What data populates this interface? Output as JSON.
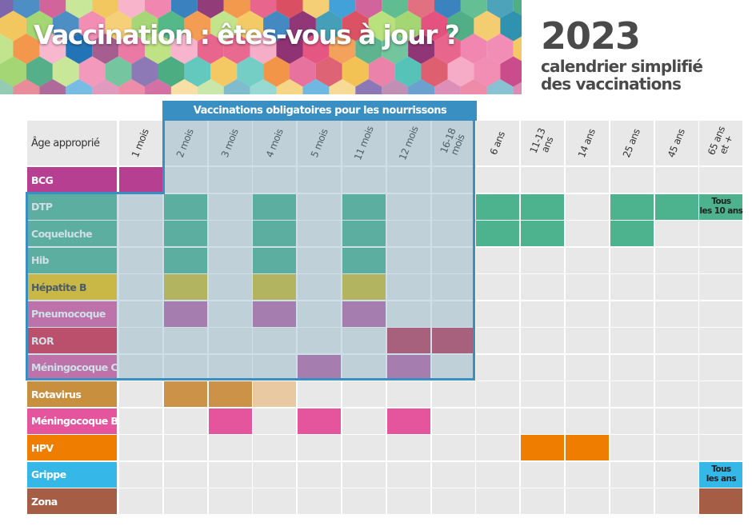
{
  "header": {
    "title": "Vaccination : êtes-vous à jour ?",
    "year": "2023",
    "subtitle_line1": "calendrier simplifié",
    "subtitle_line2": "des vaccinations"
  },
  "table": {
    "age_header": "Âge approprié",
    "mandatory_label": "Vaccinations obligatoires pour les nourrissons",
    "columns": [
      "1 mois",
      "2 mois",
      "3 mois",
      "4 mois",
      "5 mois",
      "11 mois",
      "12 mois",
      "16-18\nmois",
      "6 ans",
      "11-13\nans",
      "14 ans",
      "25 ans",
      "45 ans",
      "65 ans\net +"
    ],
    "rows": [
      {
        "name": "BCG",
        "label_color": "#b73f92",
        "dose_color": "#b73f92",
        "doses": [
          0
        ]
      },
      {
        "name": "DTP",
        "label_color": "#4db38f",
        "dose_color": "#4db38f",
        "doses": [
          1,
          3,
          5,
          8,
          9,
          11,
          12,
          13
        ],
        "note": "Tous\nles 10 ans"
      },
      {
        "name": "Coqueluche",
        "label_color": "#4db38f",
        "dose_color": "#4db38f",
        "doses": [
          1,
          3,
          5,
          8,
          9,
          11
        ]
      },
      {
        "name": "Hib",
        "label_color": "#4db38f",
        "dose_color": "#4db38f",
        "doses": [
          1,
          3,
          5
        ]
      },
      {
        "name": "Hépatite B",
        "label_color": "#f7c300",
        "dose_color": "#d4bc2a",
        "doses": [
          1,
          3,
          5
        ]
      },
      {
        "name": "Pneumocoque",
        "label_color": "#e5559d",
        "dose_color": "#c166a6",
        "doses": [
          1,
          3,
          5
        ]
      },
      {
        "name": "ROR",
        "label_color": "#e2203f",
        "dose_color": "#c23a58",
        "doses": [
          6,
          7
        ]
      },
      {
        "name": "Méningocoque C",
        "label_color": "#e5559d",
        "dose_color": "#c166a6",
        "doses": [
          4,
          6
        ]
      },
      {
        "name": "Rotavirus",
        "label_color": "#c8903e",
        "dose_color": "#cc9348",
        "doses": [
          1,
          2
        ],
        "light_doses": [
          3
        ],
        "light_color": "#e8c9a2"
      },
      {
        "name": "Méningocoque B",
        "label_color": "#e5559d",
        "dose_color": "#e5559d",
        "doses": [
          2,
          4,
          6
        ]
      },
      {
        "name": "HPV",
        "label_color": "#ef7d00",
        "dose_color": "#ef7d00",
        "doses": [
          9,
          10
        ]
      },
      {
        "name": "Grippe",
        "label_color": "#35b7e7",
        "dose_color": "#35b7e7",
        "doses": [
          13
        ],
        "note": "Tous\nles ans"
      },
      {
        "name": "Zona",
        "label_color": "#a55d45",
        "dose_color": "#a55d45",
        "doses": [
          13
        ]
      }
    ]
  },
  "colors": {
    "empty_cell": "#e8e8e8",
    "mandatory_border": "#3a8fc2",
    "title_text": "#4a4a4a"
  }
}
